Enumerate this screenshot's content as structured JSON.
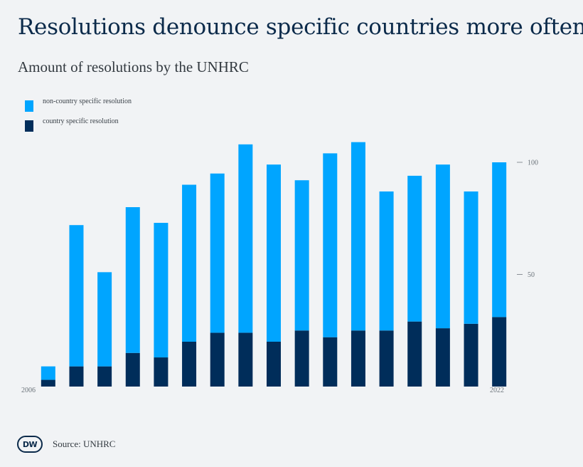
{
  "title": "Resolutions denounce specific countries more often",
  "subtitle": "Amount of resolutions by the UNHRC",
  "legend": [
    {
      "label": "non-country specific resolution",
      "color": "#00a5ff"
    },
    {
      "label": "country specific resolution",
      "color": "#002d5a"
    }
  ],
  "source": "Source: UNHRC",
  "logo_text": "DW",
  "chart_data": {
    "type": "bar",
    "stacked": true,
    "categories": [
      "2006",
      "2007",
      "2008",
      "2009",
      "2010",
      "2011",
      "2012",
      "2013",
      "2014",
      "2015",
      "2016",
      "2017",
      "2018",
      "2019",
      "2020",
      "2021",
      "2022"
    ],
    "x_tick_labels": [
      "2006",
      "2022"
    ],
    "series": [
      {
        "name": "country specific resolution",
        "color": "#002d5a",
        "values": [
          3,
          9,
          9,
          15,
          13,
          20,
          24,
          24,
          20,
          25,
          22,
          25,
          25,
          29,
          26,
          28,
          31
        ]
      },
      {
        "name": "non-country specific resolution",
        "color": "#00a5ff",
        "values": [
          6,
          63,
          42,
          65,
          60,
          70,
          71,
          84,
          79,
          67,
          82,
          84,
          62,
          65,
          73,
          59,
          69
        ]
      }
    ],
    "yticks": [
      50,
      100
    ],
    "ylim": [
      0,
      110
    ],
    "y_axis_position": "right",
    "grid": false,
    "legend_position": "top-left"
  }
}
